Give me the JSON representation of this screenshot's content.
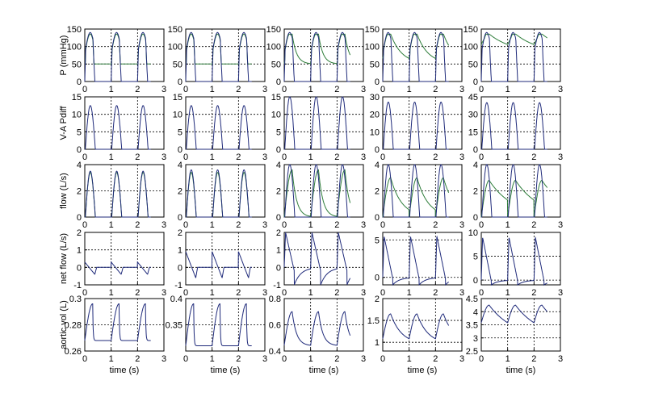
{
  "chart_data": {
    "type": "line",
    "layout": "5 rows x 5 columns of small multiples",
    "grid": true,
    "x_axis": {
      "label": "time (s)",
      "range": [
        0,
        3
      ],
      "ticks": [
        0,
        1,
        2,
        3
      ]
    },
    "row_labels": [
      "P (mmHg)",
      "V-A Pdiff",
      "flow (L/s)",
      "net flow (L/s)",
      "aortic vol (L)"
    ],
    "colors": {
      "ventricular": "#1f2a7a",
      "aortic": "#2e7d3a",
      "axis": "#000000"
    },
    "rows": [
      {
        "row_label": "P (mmHg)",
        "panels": [
          {
            "ylim": [
              0,
              150
            ],
            "yticks": [
              0,
              50,
              100,
              150
            ],
            "peak": 140,
            "aortic_min": 50,
            "aortic_decay": "flat"
          },
          {
            "ylim": [
              0,
              150
            ],
            "yticks": [
              0,
              50,
              100,
              150
            ],
            "peak": 140,
            "aortic_min": 50,
            "aortic_decay": "flat"
          },
          {
            "ylim": [
              0,
              150
            ],
            "yticks": [
              0,
              50,
              100,
              150
            ],
            "peak": 140,
            "aortic_min": 50,
            "aortic_decay": "fast"
          },
          {
            "ylim": [
              0,
              150
            ],
            "yticks": [
              0,
              50,
              100,
              150
            ],
            "peak": 140,
            "aortic_min": 50,
            "aortic_decay": "medium"
          },
          {
            "ylim": [
              0,
              150
            ],
            "yticks": [
              0,
              50,
              100,
              150
            ],
            "peak": 140,
            "aortic_min": 80,
            "aortic_decay": "slow"
          }
        ]
      },
      {
        "row_label": "V-A Pdiff",
        "panels": [
          {
            "ylim": [
              0,
              15
            ],
            "yticks": [
              0,
              5,
              10,
              15
            ],
            "peak": 12.5
          },
          {
            "ylim": [
              0,
              15
            ],
            "yticks": [
              0,
              5,
              10,
              15
            ],
            "peak": 12.5
          },
          {
            "ylim": [
              0,
              15
            ],
            "yticks": [
              0,
              5,
              10,
              15
            ],
            "peak": 15
          },
          {
            "ylim": [
              0,
              30
            ],
            "yticks": [
              0,
              10,
              20,
              30
            ],
            "peak": 27
          },
          {
            "ylim": [
              0,
              45
            ],
            "yticks": [
              0,
              15,
              30,
              45
            ],
            "peak": 40
          }
        ]
      },
      {
        "row_label": "flow (L/s)",
        "panels": [
          {
            "ylim": [
              0,
              4
            ],
            "yticks": [
              0,
              2,
              4
            ],
            "peak": 3.5,
            "aortic_peak": 3.4,
            "aortic_decay": "flat"
          },
          {
            "ylim": [
              0,
              4
            ],
            "yticks": [
              0,
              2,
              4
            ],
            "peak": 3.6,
            "aortic_peak": 3.4,
            "aortic_decay": "flat"
          },
          {
            "ylim": [
              0,
              4
            ],
            "yticks": [
              0,
              2,
              4
            ],
            "peak": 4,
            "aortic_peak": 3.6,
            "aortic_decay": "fast"
          },
          {
            "ylim": [
              0,
              4
            ],
            "yticks": [
              0,
              2,
              4
            ],
            "peak": 4,
            "aortic_peak": 3.0,
            "aortic_decay": "medium"
          },
          {
            "ylim": [
              0,
              4
            ],
            "yticks": [
              0,
              2,
              4
            ],
            "peak": 4,
            "aortic_peak": 2.8,
            "aortic_decay": "slow"
          }
        ]
      },
      {
        "row_label": "net flow (L/s)",
        "panels": [
          {
            "ylim": [
              -1,
              2
            ],
            "yticks": [
              -1,
              0,
              1,
              2
            ],
            "start": 0.3,
            "end": -0.4,
            "shape": "ramp"
          },
          {
            "ylim": [
              -1,
              2
            ],
            "yticks": [
              -1,
              0,
              1,
              2
            ],
            "start": 0.9,
            "end": -0.6,
            "shape": "ramp"
          },
          {
            "ylim": [
              -1,
              2
            ],
            "yticks": [
              -1,
              0,
              1,
              2
            ],
            "start": 2,
            "end": -1,
            "shape": "spike"
          },
          {
            "ylim": [
              -1,
              6
            ],
            "yticks": [
              0,
              5
            ],
            "start": 5.5,
            "end": -1,
            "shape": "spike"
          },
          {
            "ylim": [
              -1,
              10
            ],
            "yticks": [
              0,
              5,
              10
            ],
            "start": 9,
            "end": -1,
            "shape": "spike"
          }
        ]
      },
      {
        "row_label": "aortic vol (L)",
        "panels": [
          {
            "ylim": [
              0.26,
              0.3
            ],
            "yticks": [
              0.26,
              0.28,
              0.3
            ],
            "base": 0.268,
            "peak": 0.296,
            "decay": "flat"
          },
          {
            "ylim": [
              0.3,
              0.4
            ],
            "yticks": [
              0.35,
              0.4
            ],
            "base": 0.31,
            "peak": 0.39,
            "decay": "flat"
          },
          {
            "ylim": [
              0.4,
              0.8
            ],
            "yticks": [
              0.4,
              0.6,
              0.8
            ],
            "base": 0.44,
            "peak": 0.7,
            "decay": "fast"
          },
          {
            "ylim": [
              0.8,
              2
            ],
            "yticks": [
              1,
              1.5,
              2
            ],
            "base": 0.95,
            "peak": 1.65,
            "decay": "medium"
          },
          {
            "ylim": [
              2.5,
              4.5
            ],
            "yticks": [
              2.5,
              3,
              3.5,
              4,
              4.5
            ],
            "base": 3.0,
            "peak": 4.25,
            "decay": "slow"
          }
        ]
      }
    ]
  }
}
